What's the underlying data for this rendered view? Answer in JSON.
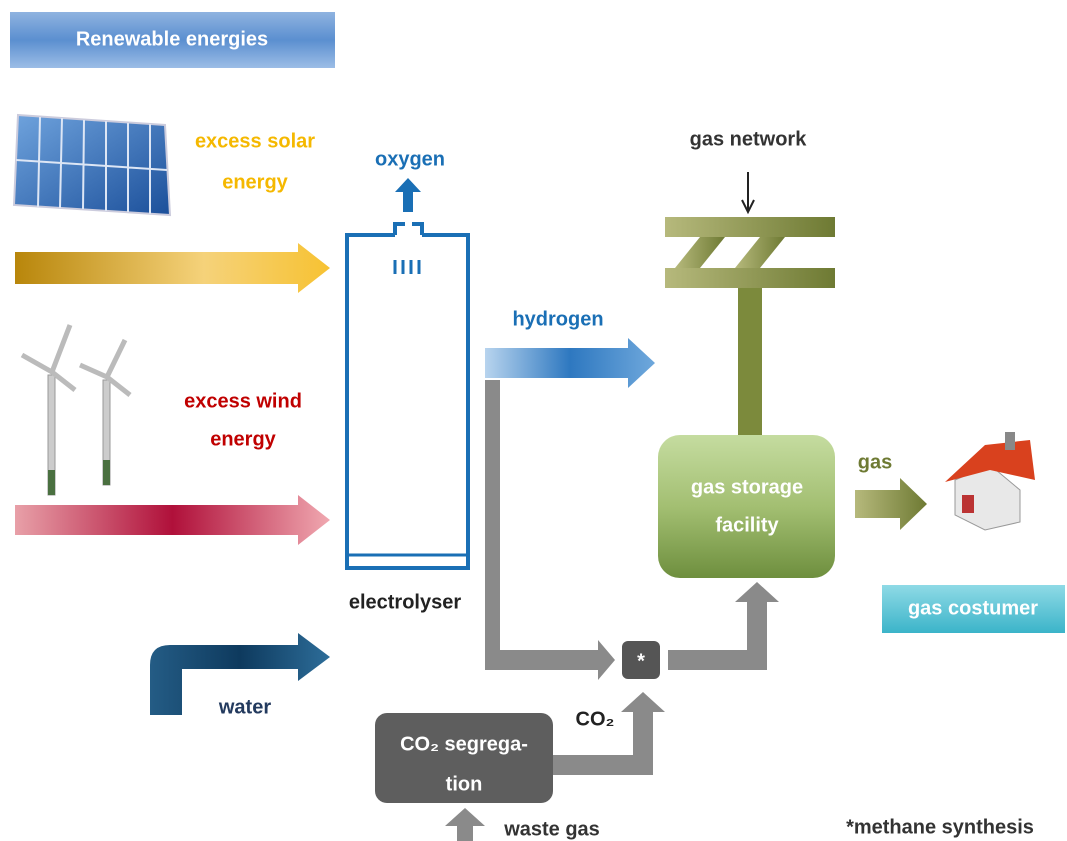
{
  "header": {
    "title": "Renewable energies"
  },
  "sources": {
    "solar": [
      "excess solar",
      "energy"
    ],
    "wind": [
      "excess wind",
      "energy"
    ],
    "water": "water"
  },
  "electrolyser": {
    "label": "electrolyser",
    "output_top": "oxygen",
    "output_side": "hydrogen"
  },
  "gas_network": "gas network",
  "storage": [
    "gas storage",
    "facility"
  ],
  "gas": "gas",
  "consumer": "gas costumer",
  "co2": {
    "label": "CO₂",
    "segregation": [
      "CO₂ segrega-",
      "tion"
    ],
    "input": "waste gas"
  },
  "methanation": {
    "symbol": "*",
    "note": "*methane synthesis"
  }
}
